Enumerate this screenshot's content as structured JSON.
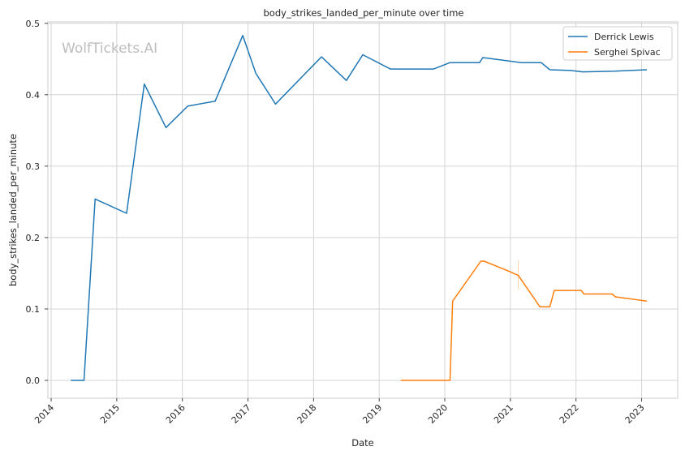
{
  "chart_data": {
    "type": "line",
    "title": "body_strikes_landed_per_minute over time",
    "xlabel": "Date",
    "ylabel": "body_strikes_landed_per_minute",
    "watermark": "WolfTickets.AI",
    "xlim": [
      2013.95,
      2023.55
    ],
    "ylim": [
      -0.025,
      0.502
    ],
    "x_ticks": [
      2014,
      2015,
      2016,
      2017,
      2018,
      2019,
      2020,
      2021,
      2022,
      2023
    ],
    "x_tick_labels": [
      "2014",
      "2015",
      "2016",
      "2017",
      "2018",
      "2019",
      "2020",
      "2021",
      "2022",
      "2023"
    ],
    "y_ticks": [
      0.0,
      0.1,
      0.2,
      0.3,
      0.4,
      0.5
    ],
    "y_tick_labels": [
      "0.0",
      "0.1",
      "0.2",
      "0.3",
      "0.4",
      "0.5"
    ],
    "grid": true,
    "legend_position": "top-right",
    "series": [
      {
        "name": "Derrick Lewis",
        "color": "#1f77b4",
        "x": [
          2014.3,
          2014.5,
          2014.67,
          2015.15,
          2015.42,
          2015.75,
          2016.08,
          2016.5,
          2016.92,
          2017.12,
          2017.42,
          2018.12,
          2018.5,
          2018.75,
          2019.17,
          2019.83,
          2020.08,
          2020.53,
          2020.58,
          2021.17,
          2021.47,
          2021.6,
          2021.92,
          2022.1,
          2022.58,
          2023.08
        ],
        "y": [
          0.0,
          0.0,
          0.254,
          0.234,
          0.415,
          0.354,
          0.384,
          0.391,
          0.483,
          0.43,
          0.387,
          0.453,
          0.42,
          0.456,
          0.436,
          0.436,
          0.445,
          0.445,
          0.452,
          0.445,
          0.445,
          0.435,
          0.434,
          0.432,
          0.433,
          0.435
        ]
      },
      {
        "name": "Serghei Spivac",
        "color": "#ff7f0e",
        "x": [
          2019.33,
          2020.08,
          2020.12,
          2020.55,
          2020.6,
          2021.0,
          2021.12,
          2021.45,
          2021.6,
          2021.67,
          2022.08,
          2022.12,
          2022.55,
          2022.6,
          2023.08
        ],
        "y": [
          0.0,
          0.0,
          0.111,
          0.167,
          0.167,
          0.152,
          0.147,
          0.103,
          0.103,
          0.126,
          0.126,
          0.121,
          0.121,
          0.117,
          0.111
        ]
      }
    ]
  }
}
